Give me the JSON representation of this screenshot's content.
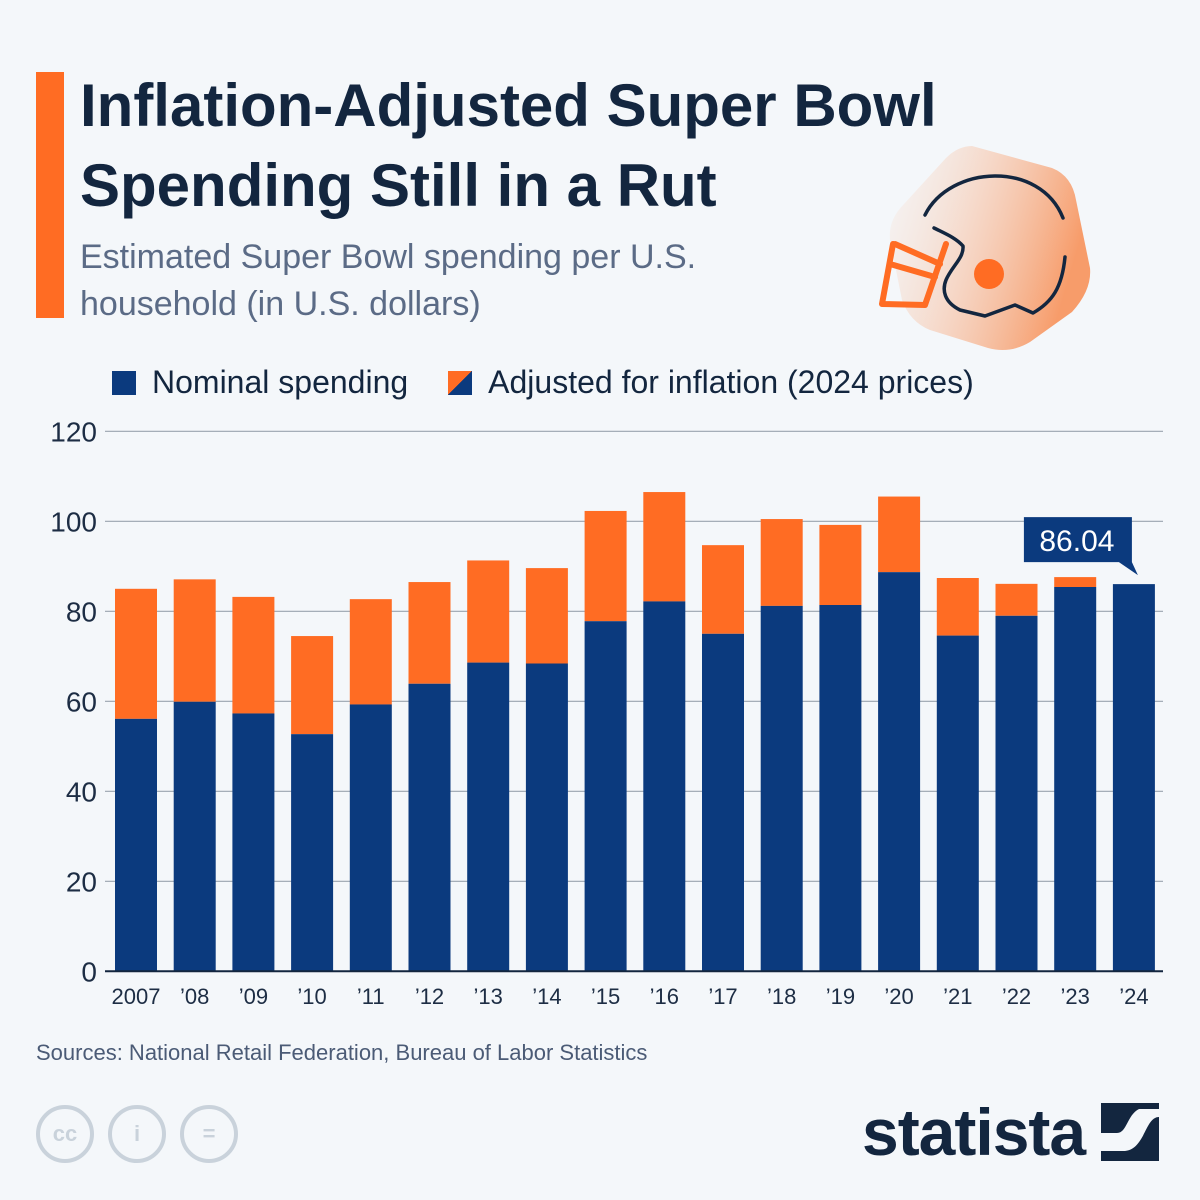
{
  "header": {
    "title": "Inflation-Adjusted Super Bowl Spending Still in a Rut",
    "subtitle": "Estimated Super Bowl spending per U.S. household (in U.S. dollars)",
    "icon": "football-helmet-icon"
  },
  "colors": {
    "nominal": "#0b3a7e",
    "adjusted": "#ff6c23",
    "title": "#13263f",
    "accent": "#ff6c23"
  },
  "chart_data": {
    "type": "bar",
    "stacked": "overlay",
    "title": "",
    "xlabel": "",
    "ylabel": "",
    "ylim": [
      0,
      120
    ],
    "yticks": [
      0,
      20,
      40,
      60,
      80,
      100,
      120
    ],
    "grid": true,
    "legend_position": "top",
    "categories": [
      "2007",
      "’08",
      "’09",
      "’10",
      "’11",
      "’12",
      "’13",
      "’14",
      "’15",
      "’16",
      "’17",
      "’18",
      "’19",
      "’20",
      "’21",
      "’22",
      "’23",
      "’24"
    ],
    "series": [
      {
        "name": "Nominal spending",
        "values": [
          56.1,
          59.9,
          57.3,
          52.7,
          59.3,
          63.9,
          68.6,
          68.4,
          77.8,
          82.2,
          75.0,
          81.2,
          81.4,
          88.7,
          74.6,
          79.0,
          85.4,
          86.04
        ]
      },
      {
        "name": "Adjusted for inflation (2024 prices)",
        "values": [
          85.0,
          87.1,
          83.2,
          74.5,
          82.7,
          86.5,
          91.3,
          89.6,
          102.3,
          106.5,
          94.7,
          100.5,
          99.2,
          105.5,
          87.4,
          86.1,
          87.6,
          86.04
        ]
      }
    ],
    "annotation": {
      "category": "’24",
      "label": "86.04"
    }
  },
  "footer": {
    "sources": "Sources: National Retail Federation, Bureau of Labor Statistics",
    "license_icons": [
      "cc-icon",
      "attribution-icon",
      "no-derivatives-icon"
    ],
    "brand": "statista"
  }
}
